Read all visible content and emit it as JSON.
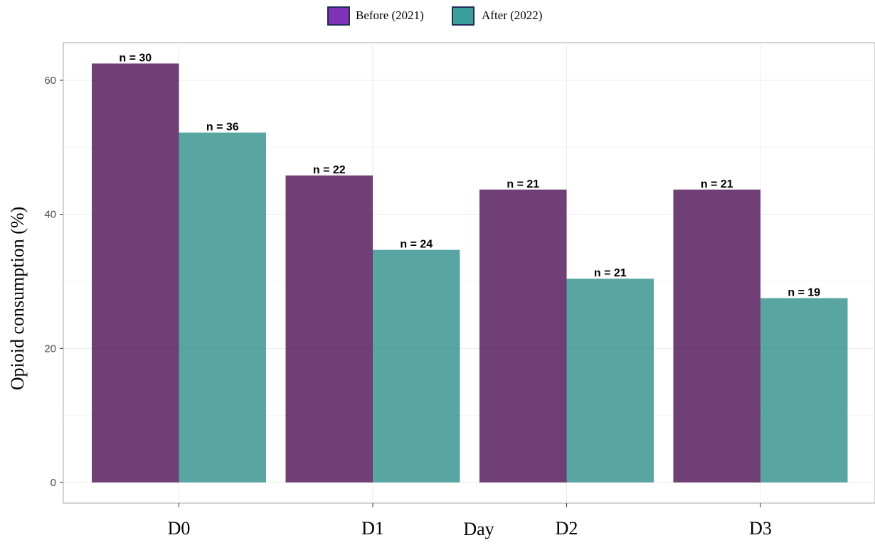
{
  "chart_data": {
    "type": "bar",
    "xlabel": "Day",
    "ylabel": "Opioid consumption (%)",
    "categories": [
      "D0",
      "D1",
      "D2",
      "D3"
    ],
    "ylim": [
      0,
      65
    ],
    "yticks": [
      0,
      20,
      40,
      60
    ],
    "grid": true,
    "legend_position": "top",
    "series": [
      {
        "name": "Before (2021)",
        "color": "#4b0f52",
        "legend_color": "#7f32b3",
        "values": [
          62.5,
          45.8,
          43.7,
          43.7
        ],
        "labels": [
          "n = 30",
          "n = 22",
          "n = 21",
          "n = 21"
        ]
      },
      {
        "name": "After (2022)",
        "color": "#2e8f8a",
        "legend_color": "#3a9f9a",
        "values": [
          52.2,
          34.7,
          30.4,
          27.5
        ],
        "labels": [
          "n = 36",
          "n = 24",
          "n = 21",
          "n = 19"
        ]
      }
    ]
  }
}
